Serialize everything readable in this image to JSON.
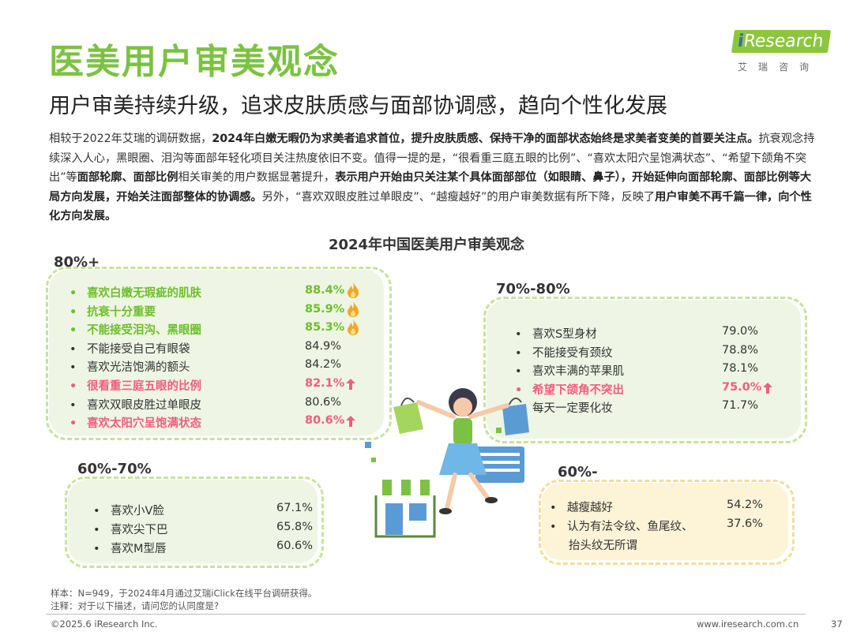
{
  "header": {
    "title": "医美用户审美观念",
    "subtitle": "用户审美持续升级，追求皮肤质感与面部协调感，趋向个性化发展",
    "logo_brand": "Research",
    "logo_i": "i",
    "logo_cn": "艾瑞咨询"
  },
  "description": {
    "p1": "相较于2022年艾瑞的调研数据，",
    "b1": "2024年白嫩无暇仍为求美者追求首位，提升皮肤质感、保持干净的面部状态始终是求美者变美的首要关注点。",
    "p2": "抗衰观念持续深入人心，黑眼圈、泪沟等面部年轻化项目关注热度依旧不变。值得一提的是，“很看重三庭五眼的比例”、“喜欢太阳穴呈饱满状态”、“希望下颌角不突出”等",
    "b2": "面部轮廓、面部比例",
    "p3": "相关审美的用户数据显著提升，",
    "b3": "表示用户开始由只关注某个具体面部部位（如眼睛、鼻子），开始延伸向面部轮廓、面部比例等大局方向发展，开始关注面部整体的协调感。",
    "p4": "另外，“喜欢双眼皮胜过单眼皮”、“越瘦越好”的用户审美数据有所下降，反映了",
    "b4": "用户审美不再千篇一律，向个性化方向发展。"
  },
  "chart_title": "2024年中国医美用户审美观念",
  "groups": [
    {
      "label": "80%+",
      "items": [
        {
          "text": "喜欢白嫩无瑕疵的肌肤",
          "value": "88.4%",
          "style": "green",
          "mark": "flame"
        },
        {
          "text": "抗衰十分重要",
          "value": "85.9%",
          "style": "green",
          "mark": "flame"
        },
        {
          "text": "不能接受泪沟、黑眼圈",
          "value": "85.3%",
          "style": "green",
          "mark": "flame"
        },
        {
          "text": "不能接受自己有眼袋",
          "value": "84.9%",
          "style": "normal",
          "mark": ""
        },
        {
          "text": "喜欢光洁饱满的额头",
          "value": "84.2%",
          "style": "normal",
          "mark": ""
        },
        {
          "text": "很看重三庭五眼的比例",
          "value": "82.1%",
          "style": "pink",
          "mark": "up"
        },
        {
          "text": "喜欢双眼皮胜过单眼皮",
          "value": "80.6%",
          "style": "normal",
          "mark": ""
        },
        {
          "text": "喜欢太阳穴呈饱满状态",
          "value": "80.6%",
          "style": "pink",
          "mark": "up"
        }
      ]
    },
    {
      "label": "70%-80%",
      "items": [
        {
          "text": "喜欢S型身材",
          "value": "79.0%",
          "style": "normal",
          "mark": ""
        },
        {
          "text": "不能接受有颈纹",
          "value": "78.8%",
          "style": "normal",
          "mark": ""
        },
        {
          "text": "喜欢丰满的苹果肌",
          "value": "78.1%",
          "style": "normal",
          "mark": ""
        },
        {
          "text": "希望下颌角不突出",
          "value": "75.0%",
          "style": "pink",
          "mark": "up"
        },
        {
          "text": "每天一定要化妆",
          "value": "71.7%",
          "style": "normal",
          "mark": ""
        }
      ]
    },
    {
      "label": "60%-70%",
      "items": [
        {
          "text": "喜欢小V脸",
          "value": "67.1%",
          "style": "normal",
          "mark": ""
        },
        {
          "text": "喜欢尖下巴",
          "value": "65.8%",
          "style": "normal",
          "mark": ""
        },
        {
          "text": "喜欢M型唇",
          "value": "60.6%",
          "style": "normal",
          "mark": ""
        }
      ]
    },
    {
      "label": "60%-",
      "items": [
        {
          "text": "越瘦越好",
          "value": "54.2%",
          "style": "normal",
          "mark": ""
        },
        {
          "text": "认为有法令纹、鱼尾纹、",
          "value": "37.6%",
          "style": "normal",
          "mark": ""
        }
      ],
      "continuation": "抬头纹无所谓"
    }
  ],
  "bullet": "•",
  "footer": {
    "sample": "样本：N=949，于2024年4月通过艾瑞iClick在线平台调研获得。",
    "note": "注释：对于以下描述，请问您的认同度是?",
    "copyright": "©2025.6 iResearch Inc.",
    "url": "www.iresearch.com.cn",
    "page": "37"
  },
  "colors": {
    "green": "#7cc242",
    "pink": "#ef5d7d",
    "blob_green": "#eef5e4",
    "blob_yellow": "#fdf3d6",
    "dash": "#c6e39a"
  }
}
